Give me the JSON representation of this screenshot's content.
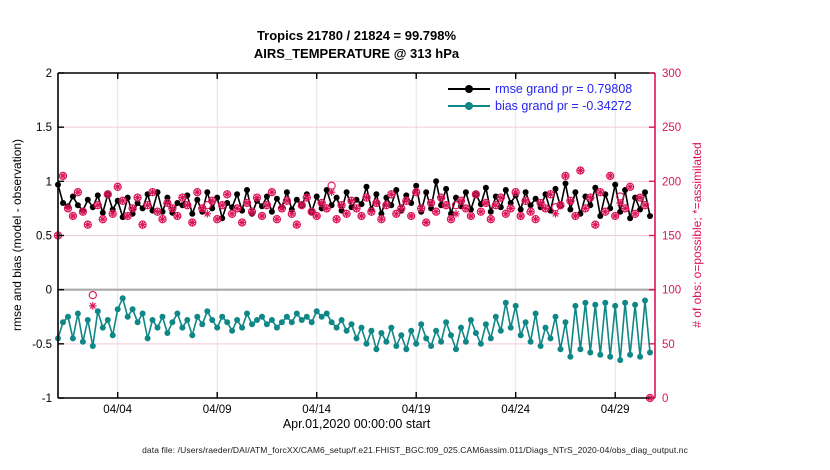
{
  "figure": {
    "title_line1": "Tropics 21780 / 21824 = 99.798%",
    "title_line2": "AIRS_TEMPERATURE @ 313 hPa",
    "xlabel": "Apr.01,2020 00:00:00 start",
    "ylabel_left": "rmse and bias (model - observation)",
    "ylabel_right": "# of obs: o=possible; *=assimilated",
    "footer": "data file: /Users/raeder/DAI/ATM_forcXX/CAM6_setup/f.e21.FHIST_BGC.f09_025.CAM6assim.011/Diags_NTrS_2020-04/obs_diag_output.nc"
  },
  "legend": {
    "rmse_label": "rmse grand pr = 0.79808",
    "bias_label": "bias grand pr = -0.34272"
  },
  "colors": {
    "rmse": "#000000",
    "bias": "#0f8786",
    "obs": "#dc1459",
    "legend_text": "#2626ee",
    "grid_horizontal": "#f3cbd8",
    "grid_vertical": "#e4e4e4",
    "zero_line": "#a9a9a9",
    "axis": "#000000"
  },
  "chart_data": {
    "type": "line",
    "title": "Tropics 21780 / 21824 = 99.798% | AIRS_TEMPERATURE @ 313 hPa",
    "x_unit": "days since Apr.01,2020 00:00:00 UTC, 6-hourly bins",
    "x_step_days": 0.25,
    "xlim_days": [
      0,
      30
    ],
    "x_ticks": [
      {
        "day": 3,
        "label": "04/04"
      },
      {
        "day": 8,
        "label": "04/09"
      },
      {
        "day": 13,
        "label": "04/14"
      },
      {
        "day": 18,
        "label": "04/19"
      },
      {
        "day": 23,
        "label": "04/24"
      },
      {
        "day": 28,
        "label": "04/29"
      }
    ],
    "ylim_left": [
      -1,
      2
    ],
    "y_ticks_left": [
      -1,
      -0.5,
      0,
      0.5,
      1,
      1.5,
      2
    ],
    "y_tick_labels_left": [
      "-1",
      "-0.5",
      "0",
      "0.5",
      "1",
      "1.5",
      "2"
    ],
    "ylim_right": [
      0,
      300
    ],
    "y_ticks_right": [
      0,
      50,
      100,
      150,
      200,
      250,
      300
    ],
    "y_tick_labels_right": [
      "0",
      "50",
      "100",
      "150",
      "200",
      "250",
      "300"
    ],
    "grid": true,
    "legend_position": "top-right-inside",
    "series": [
      {
        "name": "rmse",
        "axis": "left",
        "marker": "filled-circle",
        "grand_value": 0.79808,
        "values": [
          0.97,
          0.8,
          0.77,
          0.86,
          0.78,
          0.73,
          0.83,
          0.76,
          0.87,
          0.71,
          0.88,
          0.74,
          0.82,
          0.67,
          0.85,
          0.7,
          0.8,
          0.75,
          0.88,
          0.73,
          0.9,
          0.72,
          0.85,
          0.71,
          0.8,
          0.78,
          0.87,
          0.7,
          0.83,
          0.72,
          0.9,
          0.75,
          0.85,
          0.66,
          0.8,
          0.76,
          0.88,
          0.73,
          0.92,
          0.7,
          0.82,
          0.77,
          0.86,
          0.72,
          0.84,
          0.76,
          0.9,
          0.74,
          0.83,
          0.78,
          0.88,
          0.72,
          0.86,
          0.75,
          0.92,
          0.78,
          0.85,
          0.73,
          0.9,
          0.76,
          0.83,
          0.79,
          0.95,
          0.74,
          0.88,
          0.7,
          0.85,
          0.78,
          0.92,
          0.73,
          0.87,
          0.8,
          0.96,
          0.72,
          0.9,
          0.75,
          1.0,
          0.78,
          0.93,
          0.7,
          0.85,
          0.77,
          0.9,
          0.74,
          0.88,
          0.79,
          0.94,
          0.72,
          0.86,
          0.76,
          0.92,
          0.8,
          0.87,
          0.74,
          0.9,
          0.78,
          0.84,
          0.76,
          0.88,
          0.73,
          0.93,
          0.77,
          0.98,
          0.74,
          0.9,
          0.7,
          0.86,
          0.78,
          0.94,
          0.68,
          0.88,
          0.75,
          0.97,
          0.72,
          0.92,
          0.66,
          0.85,
          0.74,
          0.9,
          0.68
        ]
      },
      {
        "name": "bias",
        "axis": "left",
        "marker": "filled-circle",
        "grand_value": -0.34272,
        "values": [
          -0.45,
          -0.3,
          -0.25,
          -0.45,
          -0.22,
          -0.48,
          -0.28,
          -0.52,
          -0.2,
          -0.35,
          -0.28,
          -0.42,
          -0.18,
          -0.08,
          -0.25,
          -0.18,
          -0.3,
          -0.22,
          -0.45,
          -0.28,
          -0.35,
          -0.25,
          -0.4,
          -0.3,
          -0.22,
          -0.35,
          -0.28,
          -0.42,
          -0.25,
          -0.32,
          -0.2,
          -0.28,
          -0.35,
          -0.25,
          -0.3,
          -0.38,
          -0.28,
          -0.35,
          -0.22,
          -0.32,
          -0.28,
          -0.25,
          -0.32,
          -0.28,
          -0.35,
          -0.3,
          -0.25,
          -0.3,
          -0.22,
          -0.28,
          -0.25,
          -0.3,
          -0.2,
          -0.25,
          -0.22,
          -0.3,
          -0.35,
          -0.28,
          -0.38,
          -0.32,
          -0.45,
          -0.35,
          -0.5,
          -0.38,
          -0.55,
          -0.4,
          -0.48,
          -0.35,
          -0.52,
          -0.42,
          -0.55,
          -0.38,
          -0.5,
          -0.32,
          -0.45,
          -0.52,
          -0.38,
          -0.48,
          -0.3,
          -0.42,
          -0.55,
          -0.35,
          -0.48,
          -0.28,
          -0.4,
          -0.5,
          -0.32,
          -0.45,
          -0.25,
          -0.38,
          -0.12,
          -0.35,
          -0.15,
          -0.42,
          -0.3,
          -0.48,
          -0.22,
          -0.52,
          -0.35,
          -0.45,
          -0.25,
          -0.55,
          -0.3,
          -0.62,
          -0.15,
          -0.55,
          -0.12,
          -0.58,
          -0.14,
          -0.6,
          -0.12,
          -0.62,
          -0.15,
          -0.65,
          -0.12,
          -0.6,
          -0.14,
          -0.62,
          -0.1,
          -0.58
        ]
      },
      {
        "name": "obs_possible",
        "axis": "right",
        "marker": "o",
        "total": 21824,
        "values": [
          150,
          205,
          175,
          168,
          190,
          172,
          160,
          95,
          178,
          165,
          188,
          170,
          195,
          182,
          168,
          175,
          185,
          160,
          178,
          190,
          172,
          165,
          180,
          175,
          168,
          185,
          178,
          162,
          190,
          175,
          178,
          182,
          165,
          178,
          188,
          170,
          175,
          162,
          180,
          172,
          185,
          168,
          178,
          190,
          165,
          175,
          182,
          170,
          160,
          178,
          185,
          172,
          168,
          180,
          175,
          196,
          165,
          178,
          170,
          182,
          175,
          168,
          185,
          172,
          180,
          165,
          178,
          188,
          170,
          175,
          182,
          168,
          190,
          175,
          162,
          180,
          172,
          185,
          178,
          165,
          178,
          182,
          175,
          168,
          188,
          172,
          180,
          165,
          178,
          185,
          170,
          175,
          190,
          168,
          182,
          172,
          165,
          180,
          175,
          188,
          176,
          178,
          205,
          182,
          168,
          210,
          175,
          185,
          160,
          190,
          172,
          205,
          168,
          186,
          175,
          195,
          170,
          185,
          178,
          0
        ]
      },
      {
        "name": "obs_assimilated",
        "axis": "right",
        "marker": "*",
        "total": 21780,
        "values": [
          150,
          205,
          175,
          168,
          190,
          172,
          160,
          85,
          178,
          165,
          188,
          170,
          195,
          182,
          168,
          175,
          185,
          160,
          178,
          190,
          172,
          165,
          180,
          175,
          168,
          185,
          178,
          162,
          190,
          175,
          170,
          182,
          165,
          178,
          188,
          170,
          175,
          162,
          180,
          172,
          185,
          168,
          178,
          190,
          165,
          175,
          182,
          170,
          160,
          178,
          185,
          172,
          168,
          180,
          175,
          190,
          165,
          178,
          170,
          182,
          175,
          168,
          185,
          172,
          180,
          165,
          178,
          188,
          170,
          175,
          182,
          168,
          190,
          175,
          162,
          180,
          172,
          185,
          178,
          165,
          170,
          182,
          175,
          168,
          188,
          172,
          180,
          165,
          178,
          185,
          170,
          175,
          190,
          168,
          182,
          172,
          165,
          180,
          175,
          188,
          170,
          178,
          205,
          182,
          168,
          210,
          175,
          185,
          160,
          190,
          172,
          205,
          168,
          180,
          175,
          195,
          170,
          185,
          178,
          0
        ]
      }
    ]
  }
}
